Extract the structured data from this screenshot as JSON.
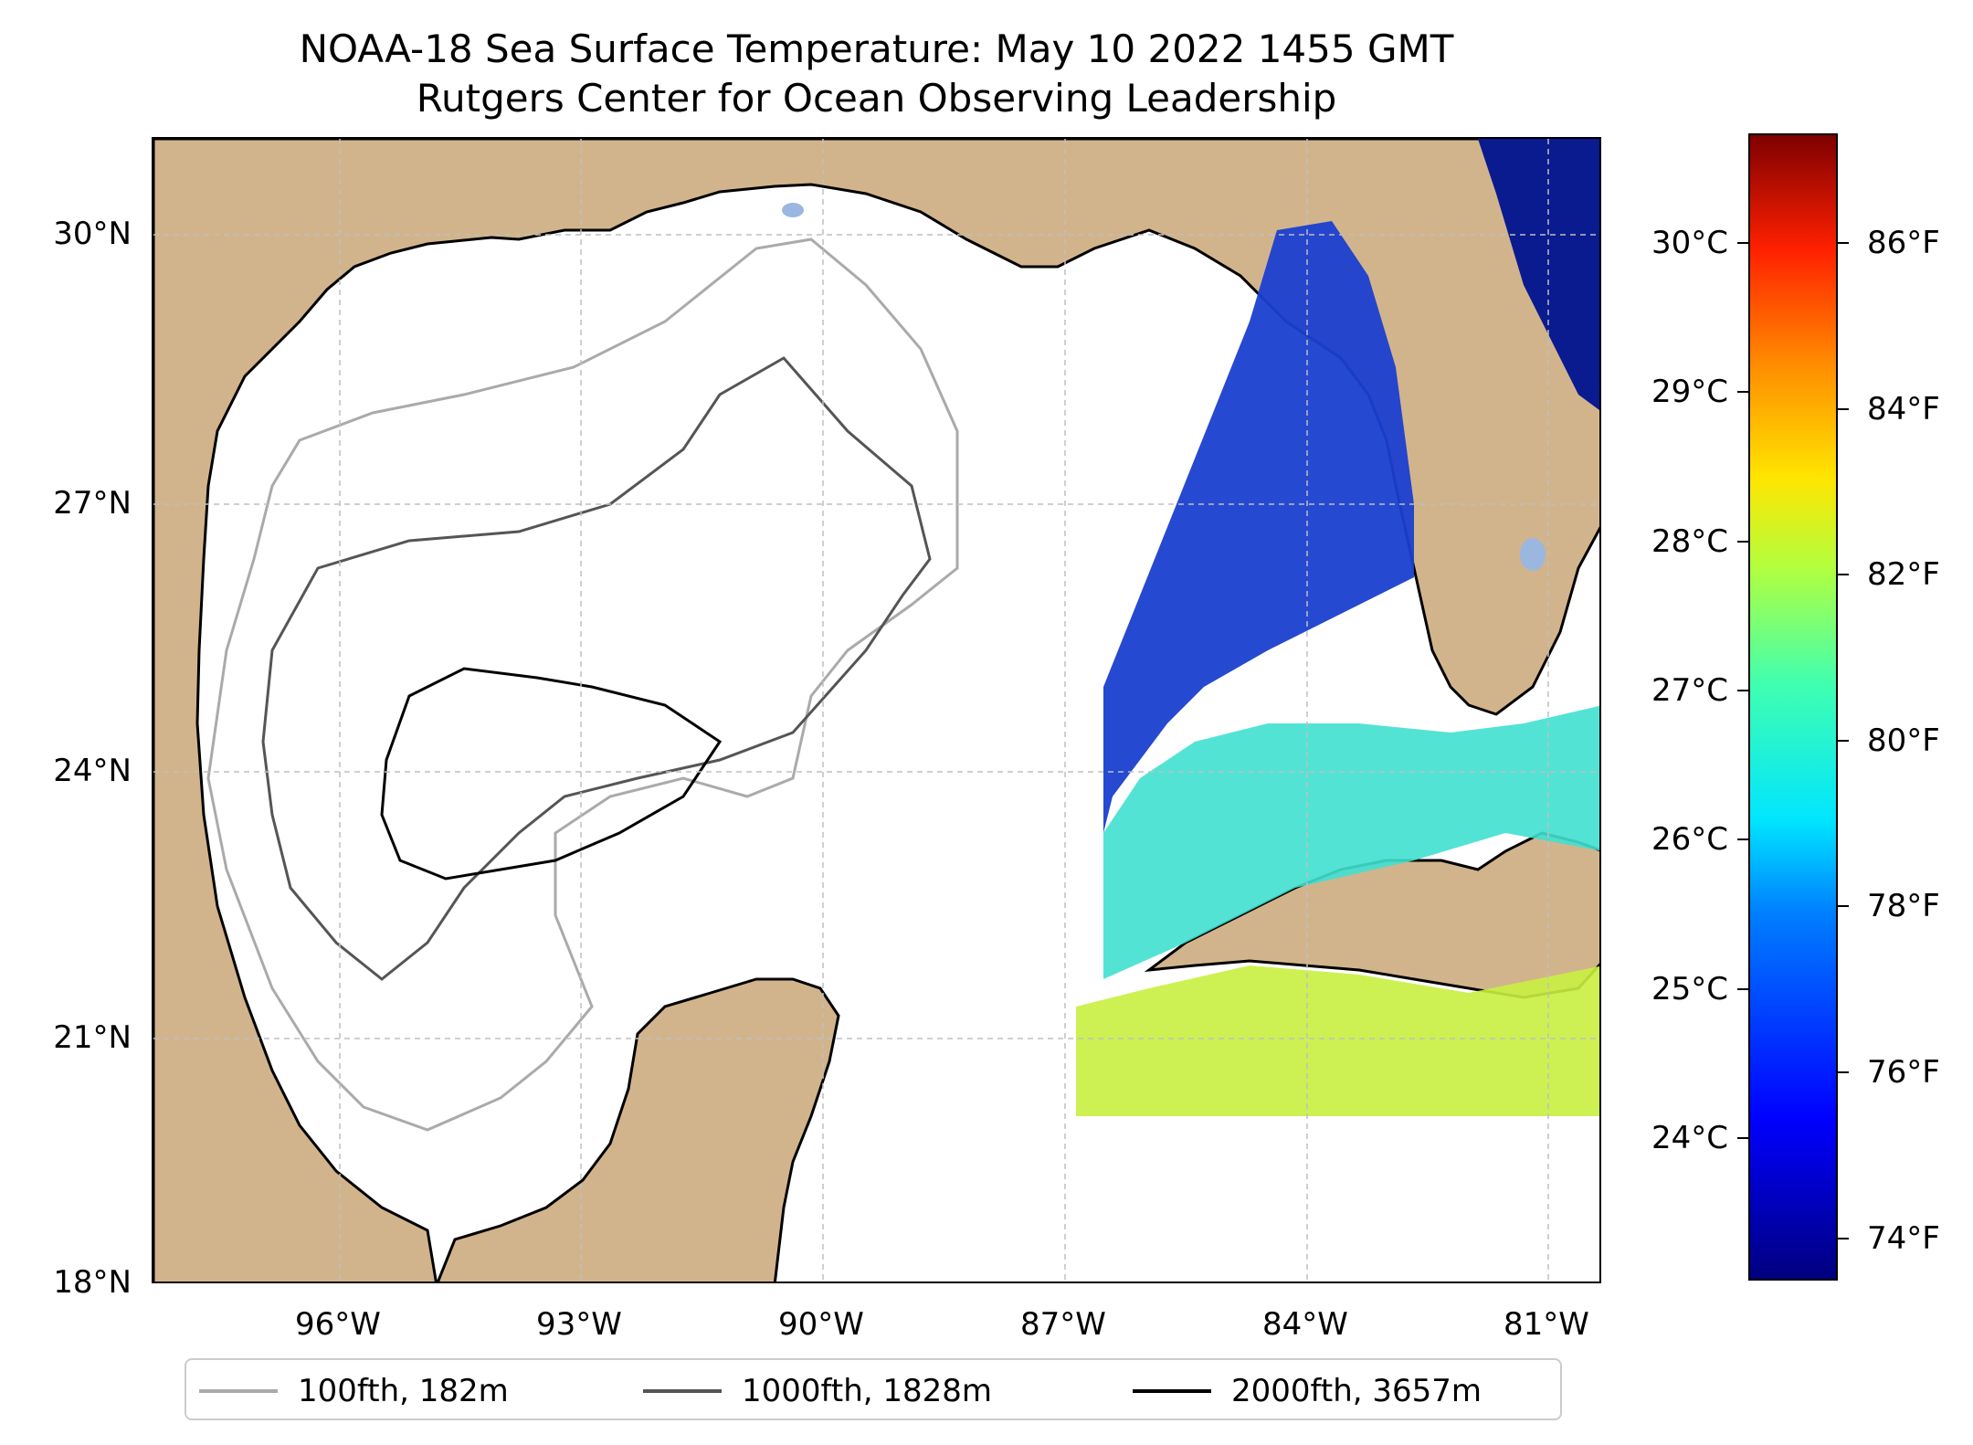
{
  "title": {
    "line1": "NOAA-18 Sea Surface Temperature: May 10 2022 1455 GMT",
    "line2": "Rutgers Center for Ocean Observing Leadership"
  },
  "map": {
    "lat_labels": [
      "30°N",
      "27°N",
      "24°N",
      "21°N",
      "18°N"
    ],
    "lon_labels": [
      "96°W",
      "93°W",
      "90°W",
      "87°W",
      "84°W",
      "81°W"
    ],
    "colors": {
      "land": "#d2b48c",
      "water_no_data": "#ffffff",
      "lakes": "#9bb7e0",
      "gridline": "#bfbfbf"
    }
  },
  "legend": {
    "items": [
      {
        "label": "100fth, 182m",
        "color": "#aaaaaa"
      },
      {
        "label": "1000fth, 1828m",
        "color": "#555555"
      },
      {
        "label": "2000fth, 3657m",
        "color": "#000000"
      }
    ]
  },
  "colorbar": {
    "celsius_labels": [
      "30°C",
      "29°C",
      "28°C",
      "27°C",
      "26°C",
      "25°C",
      "24°C"
    ],
    "fahrenheit_labels": [
      "86°F",
      "84°F",
      "82°F",
      "80°F",
      "78°F",
      "76°F",
      "74°F"
    ],
    "colormap": "jet"
  }
}
